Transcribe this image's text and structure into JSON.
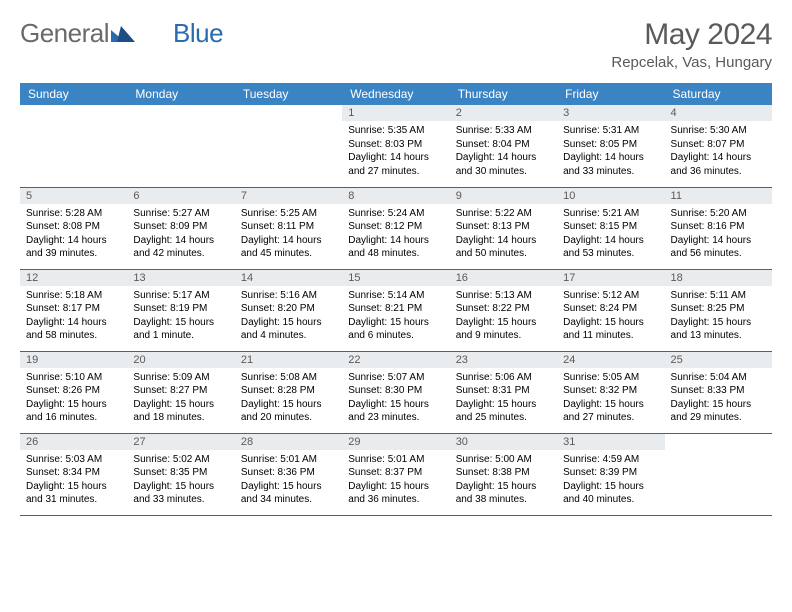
{
  "logo": {
    "part1": "General",
    "part2": "Blue"
  },
  "title": "May 2024",
  "location": "Repcelak, Vas, Hungary",
  "colors": {
    "header_bg": "#3b84c4",
    "header_fg": "#ffffff",
    "daynum_bg": "#e9ecef",
    "daynum_fg": "#5a5a5a",
    "row_border": "#34689c",
    "logo_gray": "#6a6a6a",
    "logo_blue": "#2a6bb0"
  },
  "days_of_week": [
    "Sunday",
    "Monday",
    "Tuesday",
    "Wednesday",
    "Thursday",
    "Friday",
    "Saturday"
  ],
  "weeks": [
    [
      null,
      null,
      null,
      {
        "n": "1",
        "sr": "Sunrise: 5:35 AM",
        "ss": "Sunset: 8:03 PM",
        "dl1": "Daylight: 14 hours",
        "dl2": "and 27 minutes."
      },
      {
        "n": "2",
        "sr": "Sunrise: 5:33 AM",
        "ss": "Sunset: 8:04 PM",
        "dl1": "Daylight: 14 hours",
        "dl2": "and 30 minutes."
      },
      {
        "n": "3",
        "sr": "Sunrise: 5:31 AM",
        "ss": "Sunset: 8:05 PM",
        "dl1": "Daylight: 14 hours",
        "dl2": "and 33 minutes."
      },
      {
        "n": "4",
        "sr": "Sunrise: 5:30 AM",
        "ss": "Sunset: 8:07 PM",
        "dl1": "Daylight: 14 hours",
        "dl2": "and 36 minutes."
      }
    ],
    [
      {
        "n": "5",
        "sr": "Sunrise: 5:28 AM",
        "ss": "Sunset: 8:08 PM",
        "dl1": "Daylight: 14 hours",
        "dl2": "and 39 minutes."
      },
      {
        "n": "6",
        "sr": "Sunrise: 5:27 AM",
        "ss": "Sunset: 8:09 PM",
        "dl1": "Daylight: 14 hours",
        "dl2": "and 42 minutes."
      },
      {
        "n": "7",
        "sr": "Sunrise: 5:25 AM",
        "ss": "Sunset: 8:11 PM",
        "dl1": "Daylight: 14 hours",
        "dl2": "and 45 minutes."
      },
      {
        "n": "8",
        "sr": "Sunrise: 5:24 AM",
        "ss": "Sunset: 8:12 PM",
        "dl1": "Daylight: 14 hours",
        "dl2": "and 48 minutes."
      },
      {
        "n": "9",
        "sr": "Sunrise: 5:22 AM",
        "ss": "Sunset: 8:13 PM",
        "dl1": "Daylight: 14 hours",
        "dl2": "and 50 minutes."
      },
      {
        "n": "10",
        "sr": "Sunrise: 5:21 AM",
        "ss": "Sunset: 8:15 PM",
        "dl1": "Daylight: 14 hours",
        "dl2": "and 53 minutes."
      },
      {
        "n": "11",
        "sr": "Sunrise: 5:20 AM",
        "ss": "Sunset: 8:16 PM",
        "dl1": "Daylight: 14 hours",
        "dl2": "and 56 minutes."
      }
    ],
    [
      {
        "n": "12",
        "sr": "Sunrise: 5:18 AM",
        "ss": "Sunset: 8:17 PM",
        "dl1": "Daylight: 14 hours",
        "dl2": "and 58 minutes."
      },
      {
        "n": "13",
        "sr": "Sunrise: 5:17 AM",
        "ss": "Sunset: 8:19 PM",
        "dl1": "Daylight: 15 hours",
        "dl2": "and 1 minute."
      },
      {
        "n": "14",
        "sr": "Sunrise: 5:16 AM",
        "ss": "Sunset: 8:20 PM",
        "dl1": "Daylight: 15 hours",
        "dl2": "and 4 minutes."
      },
      {
        "n": "15",
        "sr": "Sunrise: 5:14 AM",
        "ss": "Sunset: 8:21 PM",
        "dl1": "Daylight: 15 hours",
        "dl2": "and 6 minutes."
      },
      {
        "n": "16",
        "sr": "Sunrise: 5:13 AM",
        "ss": "Sunset: 8:22 PM",
        "dl1": "Daylight: 15 hours",
        "dl2": "and 9 minutes."
      },
      {
        "n": "17",
        "sr": "Sunrise: 5:12 AM",
        "ss": "Sunset: 8:24 PM",
        "dl1": "Daylight: 15 hours",
        "dl2": "and 11 minutes."
      },
      {
        "n": "18",
        "sr": "Sunrise: 5:11 AM",
        "ss": "Sunset: 8:25 PM",
        "dl1": "Daylight: 15 hours",
        "dl2": "and 13 minutes."
      }
    ],
    [
      {
        "n": "19",
        "sr": "Sunrise: 5:10 AM",
        "ss": "Sunset: 8:26 PM",
        "dl1": "Daylight: 15 hours",
        "dl2": "and 16 minutes."
      },
      {
        "n": "20",
        "sr": "Sunrise: 5:09 AM",
        "ss": "Sunset: 8:27 PM",
        "dl1": "Daylight: 15 hours",
        "dl2": "and 18 minutes."
      },
      {
        "n": "21",
        "sr": "Sunrise: 5:08 AM",
        "ss": "Sunset: 8:28 PM",
        "dl1": "Daylight: 15 hours",
        "dl2": "and 20 minutes."
      },
      {
        "n": "22",
        "sr": "Sunrise: 5:07 AM",
        "ss": "Sunset: 8:30 PM",
        "dl1": "Daylight: 15 hours",
        "dl2": "and 23 minutes."
      },
      {
        "n": "23",
        "sr": "Sunrise: 5:06 AM",
        "ss": "Sunset: 8:31 PM",
        "dl1": "Daylight: 15 hours",
        "dl2": "and 25 minutes."
      },
      {
        "n": "24",
        "sr": "Sunrise: 5:05 AM",
        "ss": "Sunset: 8:32 PM",
        "dl1": "Daylight: 15 hours",
        "dl2": "and 27 minutes."
      },
      {
        "n": "25",
        "sr": "Sunrise: 5:04 AM",
        "ss": "Sunset: 8:33 PM",
        "dl1": "Daylight: 15 hours",
        "dl2": "and 29 minutes."
      }
    ],
    [
      {
        "n": "26",
        "sr": "Sunrise: 5:03 AM",
        "ss": "Sunset: 8:34 PM",
        "dl1": "Daylight: 15 hours",
        "dl2": "and 31 minutes."
      },
      {
        "n": "27",
        "sr": "Sunrise: 5:02 AM",
        "ss": "Sunset: 8:35 PM",
        "dl1": "Daylight: 15 hours",
        "dl2": "and 33 minutes."
      },
      {
        "n": "28",
        "sr": "Sunrise: 5:01 AM",
        "ss": "Sunset: 8:36 PM",
        "dl1": "Daylight: 15 hours",
        "dl2": "and 34 minutes."
      },
      {
        "n": "29",
        "sr": "Sunrise: 5:01 AM",
        "ss": "Sunset: 8:37 PM",
        "dl1": "Daylight: 15 hours",
        "dl2": "and 36 minutes."
      },
      {
        "n": "30",
        "sr": "Sunrise: 5:00 AM",
        "ss": "Sunset: 8:38 PM",
        "dl1": "Daylight: 15 hours",
        "dl2": "and 38 minutes."
      },
      {
        "n": "31",
        "sr": "Sunrise: 4:59 AM",
        "ss": "Sunset: 8:39 PM",
        "dl1": "Daylight: 15 hours",
        "dl2": "and 40 minutes."
      },
      null
    ]
  ]
}
